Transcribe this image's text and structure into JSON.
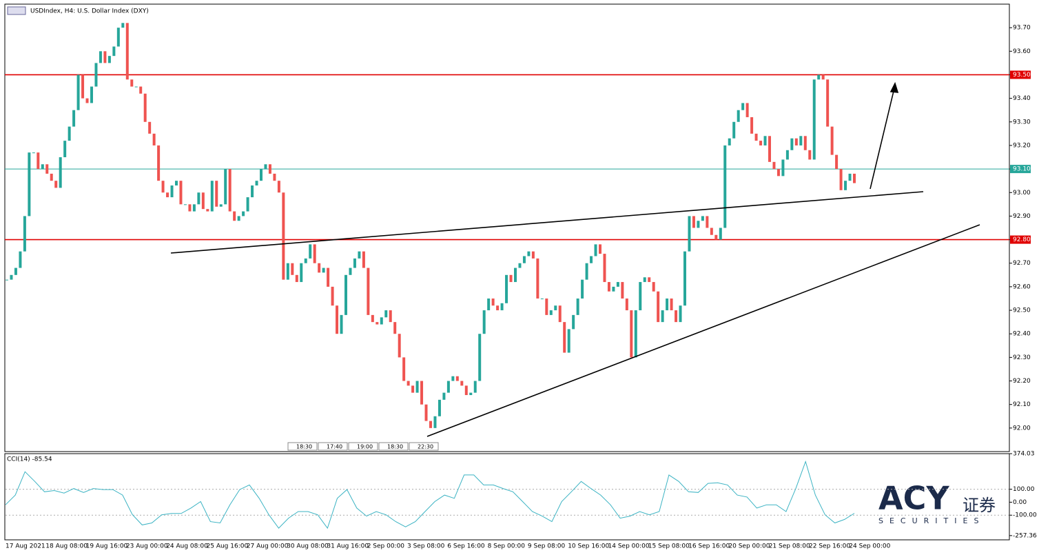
{
  "chart_data": {
    "type": "candlestick",
    "title": "USDIndex, H4:  U.S. Dollar Index (DXY)",
    "up_color": "#26a69a",
    "down_color": "#ef5350",
    "ylim": [
      91.9,
      93.8
    ],
    "yticks": [
      {
        "value": 93.7,
        "label": "93.70"
      },
      {
        "value": 93.6,
        "label": "93.60"
      },
      {
        "value": 93.5,
        "label": "93.50"
      },
      {
        "value": 93.4,
        "label": "93.40"
      },
      {
        "value": 93.3,
        "label": "93.30"
      },
      {
        "value": 93.2,
        "label": "93.20"
      },
      {
        "value": 93.1,
        "label": "93.10"
      },
      {
        "value": 93.0,
        "label": "93.00"
      },
      {
        "value": 92.9,
        "label": "92.90"
      },
      {
        "value": 92.8,
        "label": "92.80"
      },
      {
        "value": 92.7,
        "label": "92.70"
      },
      {
        "value": 92.6,
        "label": "92.60"
      },
      {
        "value": 92.5,
        "label": "92.50"
      },
      {
        "value": 92.4,
        "label": "92.40"
      },
      {
        "value": 92.3,
        "label": "92.30"
      },
      {
        "value": 92.2,
        "label": "92.20"
      },
      {
        "value": 92.1,
        "label": "92.10"
      },
      {
        "value": 92.0,
        "label": "92.00"
      }
    ],
    "levels": [
      {
        "value": 93.5,
        "label": "93.50",
        "color": "#e00000"
      },
      {
        "value": 92.8,
        "label": "92.80",
        "color": "#e00000"
      },
      {
        "value": 93.1,
        "label": "93.10",
        "color": "#26a69a"
      }
    ],
    "x_labels": [
      "17 Aug 2021",
      "18 Aug 08:00",
      "19 Aug 16:00",
      "23 Aug 00:00",
      "24 Aug 08:00",
      "25 Aug 16:00",
      "27 Aug 00:00",
      "30 Aug 08:00",
      "31 Aug 16:00",
      "2 Sep 00:00",
      "3 Sep 08:00",
      "6 Sep 16:00",
      "8 Sep 00:00",
      "9 Sep 08:00",
      "10 Sep 16:00",
      "14 Sep 00:00",
      "15 Sep 08:00",
      "16 Sep 16:00",
      "20 Sep 00:00",
      "21 Sep 08:00",
      "22 Sep 16:00",
      "24 Sep 00:00"
    ],
    "time_markers": [
      "18:30",
      "17:40",
      "19:00",
      "18:30",
      "22:30"
    ],
    "close": [
      92.63,
      92.65,
      92.68,
      92.75,
      92.9,
      93.17,
      93.17,
      93.1,
      93.12,
      93.08,
      93.05,
      93.02,
      93.15,
      93.22,
      93.28,
      93.35,
      93.5,
      93.4,
      93.38,
      93.45,
      93.55,
      93.6,
      93.55,
      93.58,
      93.62,
      93.7,
      93.72,
      93.48,
      93.45,
      93.45,
      93.42,
      93.3,
      93.25,
      93.2,
      93.05,
      93.0,
      92.98,
      93.03,
      93.05,
      92.95,
      92.95,
      92.92,
      92.95,
      93.0,
      92.93,
      92.92,
      93.05,
      92.94,
      92.95,
      93.1,
      92.92,
      92.88,
      92.9,
      92.92,
      92.98,
      93.03,
      93.05,
      93.1,
      93.12,
      93.08,
      93.05,
      93.0,
      92.63,
      92.7,
      92.65,
      92.62,
      92.7,
      92.72,
      92.78,
      92.7,
      92.66,
      92.68,
      92.6,
      92.52,
      92.4,
      92.48,
      92.65,
      92.68,
      92.72,
      92.75,
      92.68,
      92.48,
      92.45,
      92.44,
      92.47,
      92.5,
      92.45,
      92.4,
      92.3,
      92.2,
      92.18,
      92.15,
      92.2,
      92.1,
      92.03,
      92.0,
      92.05,
      92.12,
      92.15,
      92.2,
      92.22,
      92.2,
      92.18,
      92.14,
      92.15,
      92.2,
      92.4,
      92.5,
      92.55,
      92.52,
      92.5,
      92.53,
      92.65,
      92.62,
      92.68,
      92.7,
      92.73,
      92.75,
      92.72,
      92.55,
      92.55,
      92.48,
      92.5,
      92.52,
      92.45,
      92.32,
      92.42,
      92.48,
      92.55,
      92.63,
      92.7,
      92.73,
      92.78,
      92.74,
      92.62,
      92.58,
      92.6,
      92.62,
      92.55,
      92.5,
      92.3,
      92.5,
      92.62,
      92.64,
      92.62,
      92.58,
      92.45,
      92.5,
      92.55,
      92.5,
      92.45,
      92.52,
      92.75,
      92.9,
      92.85,
      92.88,
      92.9,
      92.85,
      92.82,
      92.8,
      92.85,
      93.2,
      93.23,
      93.3,
      93.35,
      93.38,
      93.32,
      93.25,
      93.22,
      93.2,
      93.24,
      93.13,
      93.1,
      93.07,
      93.14,
      93.18,
      93.23,
      93.2,
      93.24,
      93.18,
      93.14,
      93.48,
      93.5,
      93.48,
      93.28,
      93.16,
      93.1,
      93.01,
      93.05,
      93.08,
      93.04
    ],
    "cci": {
      "title": "CCI(14) -85.54",
      "color": "#3bb3c3",
      "ylim": [
        -290,
        374.03
      ],
      "yticks": [
        {
          "value": 374.03,
          "label": "374.03"
        },
        {
          "value": 100,
          "label": "100.00"
        },
        {
          "value": 0,
          "label": "0.00"
        },
        {
          "value": -100,
          "label": "-100.00"
        },
        {
          "value": -257.36,
          "label": "-257.36"
        }
      ],
      "levels": [
        100,
        -100
      ],
      "values": [
        -20,
        55,
        235,
        160,
        80,
        90,
        70,
        105,
        75,
        105,
        97,
        97,
        55,
        -95,
        -175,
        -160,
        -97,
        -87,
        -87,
        -45,
        5,
        -150,
        -160,
        -20,
        97,
        133,
        30,
        -97,
        -200,
        -123,
        -72,
        -72,
        -97,
        -200,
        30,
        97,
        -45,
        -107,
        -72,
        -97,
        -150,
        -190,
        -150,
        -72,
        5,
        55,
        30,
        210,
        210,
        133,
        133,
        105,
        80,
        5,
        -72,
        -107,
        -150,
        5,
        80,
        160,
        105,
        55,
        -20,
        -123,
        -107,
        -72,
        -97,
        -72,
        210,
        160,
        80,
        75,
        145,
        150,
        133,
        55,
        40,
        -45,
        -20,
        -20,
        -72,
        105,
        313,
        55,
        -97,
        -160,
        -133,
        -85.54
      ]
    },
    "logo": {
      "name": "ACY",
      "cn": "证券",
      "sub": "SECURITIES"
    }
  }
}
